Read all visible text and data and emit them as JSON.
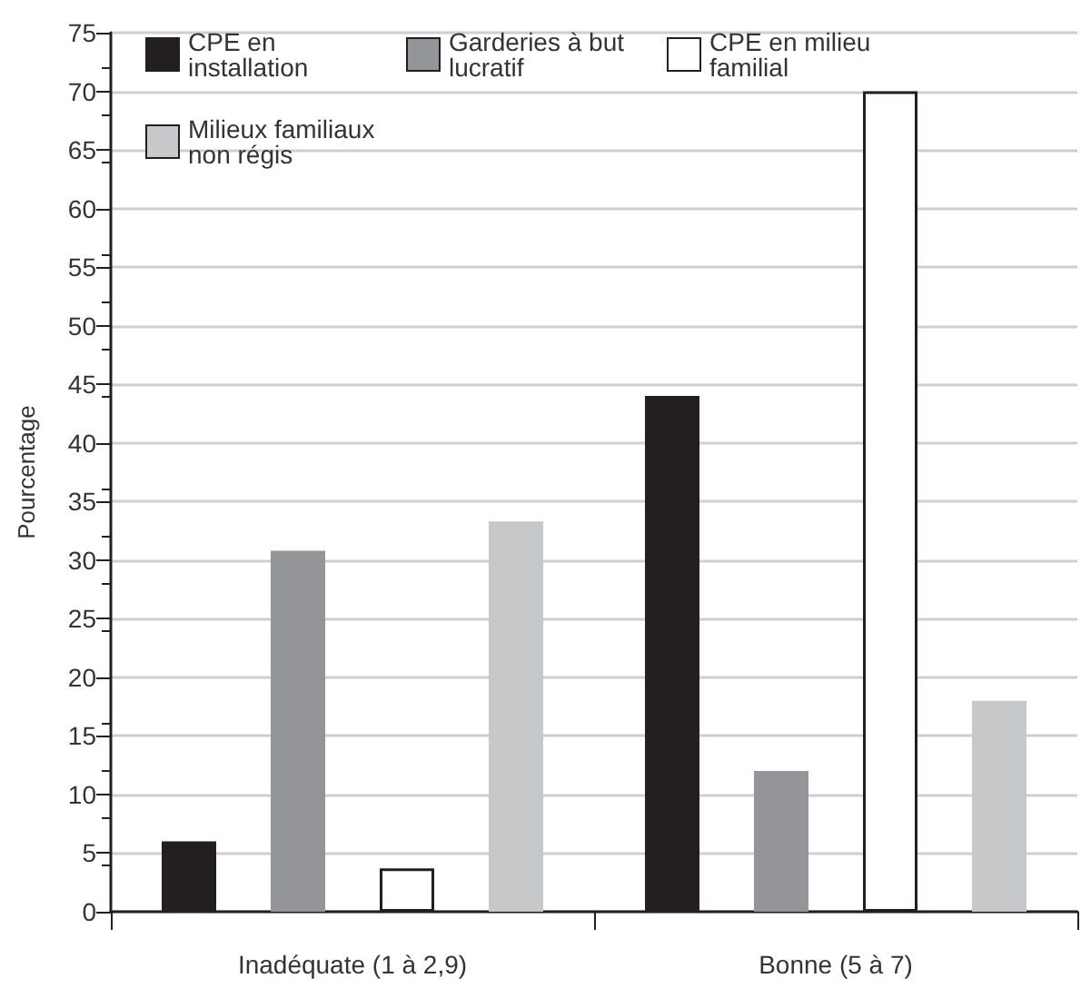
{
  "chart_data": {
    "type": "bar",
    "ylabel": "Pourcentage",
    "categories": [
      "Inadéquate (1 à 2,9)",
      "Bonne (5 à 7)"
    ],
    "series": [
      {
        "name": "CPE en installation",
        "color": "#231f20",
        "values": [
          6,
          44
        ]
      },
      {
        "name": "Garderies à but lucratif",
        "color": "#939598",
        "values": [
          30.8,
          12
        ]
      },
      {
        "name": "CPE en milieu familial",
        "color": "#ffffff",
        "values": [
          3.7,
          70
        ]
      },
      {
        "name": "Milieux familiaux non régis",
        "color": "#c7c8ca",
        "values": [
          33.3,
          18
        ]
      }
    ],
    "ylim": [
      0,
      75
    ],
    "yticks": [
      0,
      5,
      10,
      15,
      20,
      25,
      30,
      35,
      40,
      45,
      50,
      55,
      60,
      65,
      70,
      75
    ],
    "grid": "y",
    "legend": "top"
  }
}
